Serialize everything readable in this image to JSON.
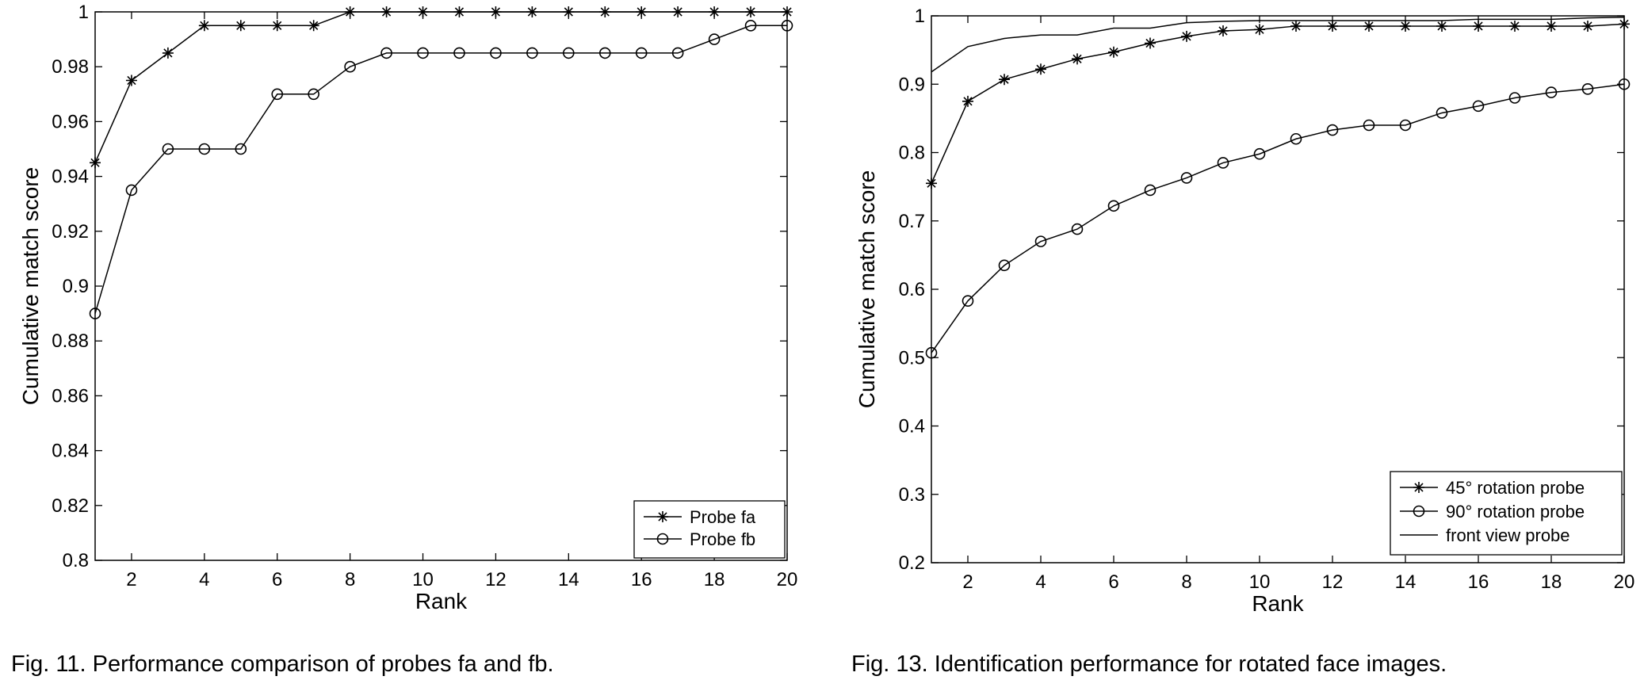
{
  "chart_data": [
    {
      "type": "line",
      "caption": "Fig. 11. Performance comparison of probes fa and fb.",
      "xlabel": "Rank",
      "ylabel": "Cumulative match score",
      "xlim": [
        1,
        20
      ],
      "ylim": [
        0.8,
        1.0
      ],
      "xticks": [
        2,
        4,
        6,
        8,
        10,
        12,
        14,
        16,
        18,
        20
      ],
      "xtick_labels": [
        "2",
        "4",
        "6",
        "8",
        "10",
        "12",
        "14",
        "16",
        "18",
        "20"
      ],
      "yticks": [
        0.8,
        0.82,
        0.84,
        0.86,
        0.88,
        0.9,
        0.92,
        0.94,
        0.96,
        0.98,
        1.0
      ],
      "ytick_labels": [
        "0.8",
        "0.82",
        "0.84",
        "0.86",
        "0.88",
        "0.9",
        "0.92",
        "0.94",
        "0.96",
        "0.98",
        "1"
      ],
      "grid": false,
      "legend_position": "bottom-right",
      "x": [
        1,
        2,
        3,
        4,
        5,
        6,
        7,
        8,
        9,
        10,
        11,
        12,
        13,
        14,
        15,
        16,
        17,
        18,
        19,
        20
      ],
      "series": [
        {
          "name": "Probe fa",
          "marker": "star",
          "values": [
            0.945,
            0.975,
            0.985,
            0.995,
            0.995,
            0.995,
            0.995,
            1.0,
            1.0,
            1.0,
            1.0,
            1.0,
            1.0,
            1.0,
            1.0,
            1.0,
            1.0,
            1.0,
            1.0,
            1.0
          ]
        },
        {
          "name": "Probe fb",
          "marker": "circle",
          "values": [
            0.89,
            0.935,
            0.95,
            0.95,
            0.95,
            0.97,
            0.97,
            0.98,
            0.985,
            0.985,
            0.985,
            0.985,
            0.985,
            0.985,
            0.985,
            0.985,
            0.985,
            0.99,
            0.995,
            0.995
          ]
        }
      ]
    },
    {
      "type": "line",
      "caption": "Fig. 13. Identification performance for rotated face images.",
      "xlabel": "Rank",
      "ylabel": "Cumulative match score",
      "xlim": [
        1,
        20
      ],
      "ylim": [
        0.2,
        1.0
      ],
      "xticks": [
        2,
        4,
        6,
        8,
        10,
        12,
        14,
        16,
        18,
        20
      ],
      "xtick_labels": [
        "2",
        "4",
        "6",
        "8",
        "10",
        "12",
        "14",
        "16",
        "18",
        "20"
      ],
      "yticks": [
        0.2,
        0.3,
        0.4,
        0.5,
        0.6,
        0.7,
        0.8,
        0.9,
        1.0
      ],
      "ytick_labels": [
        "0.2",
        "0.3",
        "0.4",
        "0.5",
        "0.6",
        "0.7",
        "0.8",
        "0.9",
        "1"
      ],
      "grid": false,
      "legend_position": "bottom-right",
      "x": [
        1,
        2,
        3,
        4,
        5,
        6,
        7,
        8,
        9,
        10,
        11,
        12,
        13,
        14,
        15,
        16,
        17,
        18,
        19,
        20
      ],
      "series": [
        {
          "name": "45° rotation probe",
          "marker": "star",
          "values": [
            0.755,
            0.875,
            0.907,
            0.922,
            0.937,
            0.947,
            0.96,
            0.97,
            0.978,
            0.98,
            0.985,
            0.985,
            0.985,
            0.985,
            0.985,
            0.985,
            0.985,
            0.985,
            0.985,
            0.988
          ]
        },
        {
          "name": "90° rotation probe",
          "marker": "circle",
          "values": [
            0.507,
            0.583,
            0.635,
            0.67,
            0.688,
            0.722,
            0.745,
            0.763,
            0.785,
            0.798,
            0.82,
            0.833,
            0.84,
            0.84,
            0.858,
            0.868,
            0.88,
            0.888,
            0.893,
            0.9
          ]
        },
        {
          "name": "front view probe",
          "marker": "none",
          "values": [
            0.918,
            0.955,
            0.967,
            0.972,
            0.972,
            0.982,
            0.982,
            0.99,
            0.992,
            0.993,
            0.993,
            0.993,
            0.993,
            0.993,
            0.993,
            0.995,
            0.995,
            0.995,
            0.997,
            0.998
          ]
        }
      ]
    }
  ]
}
